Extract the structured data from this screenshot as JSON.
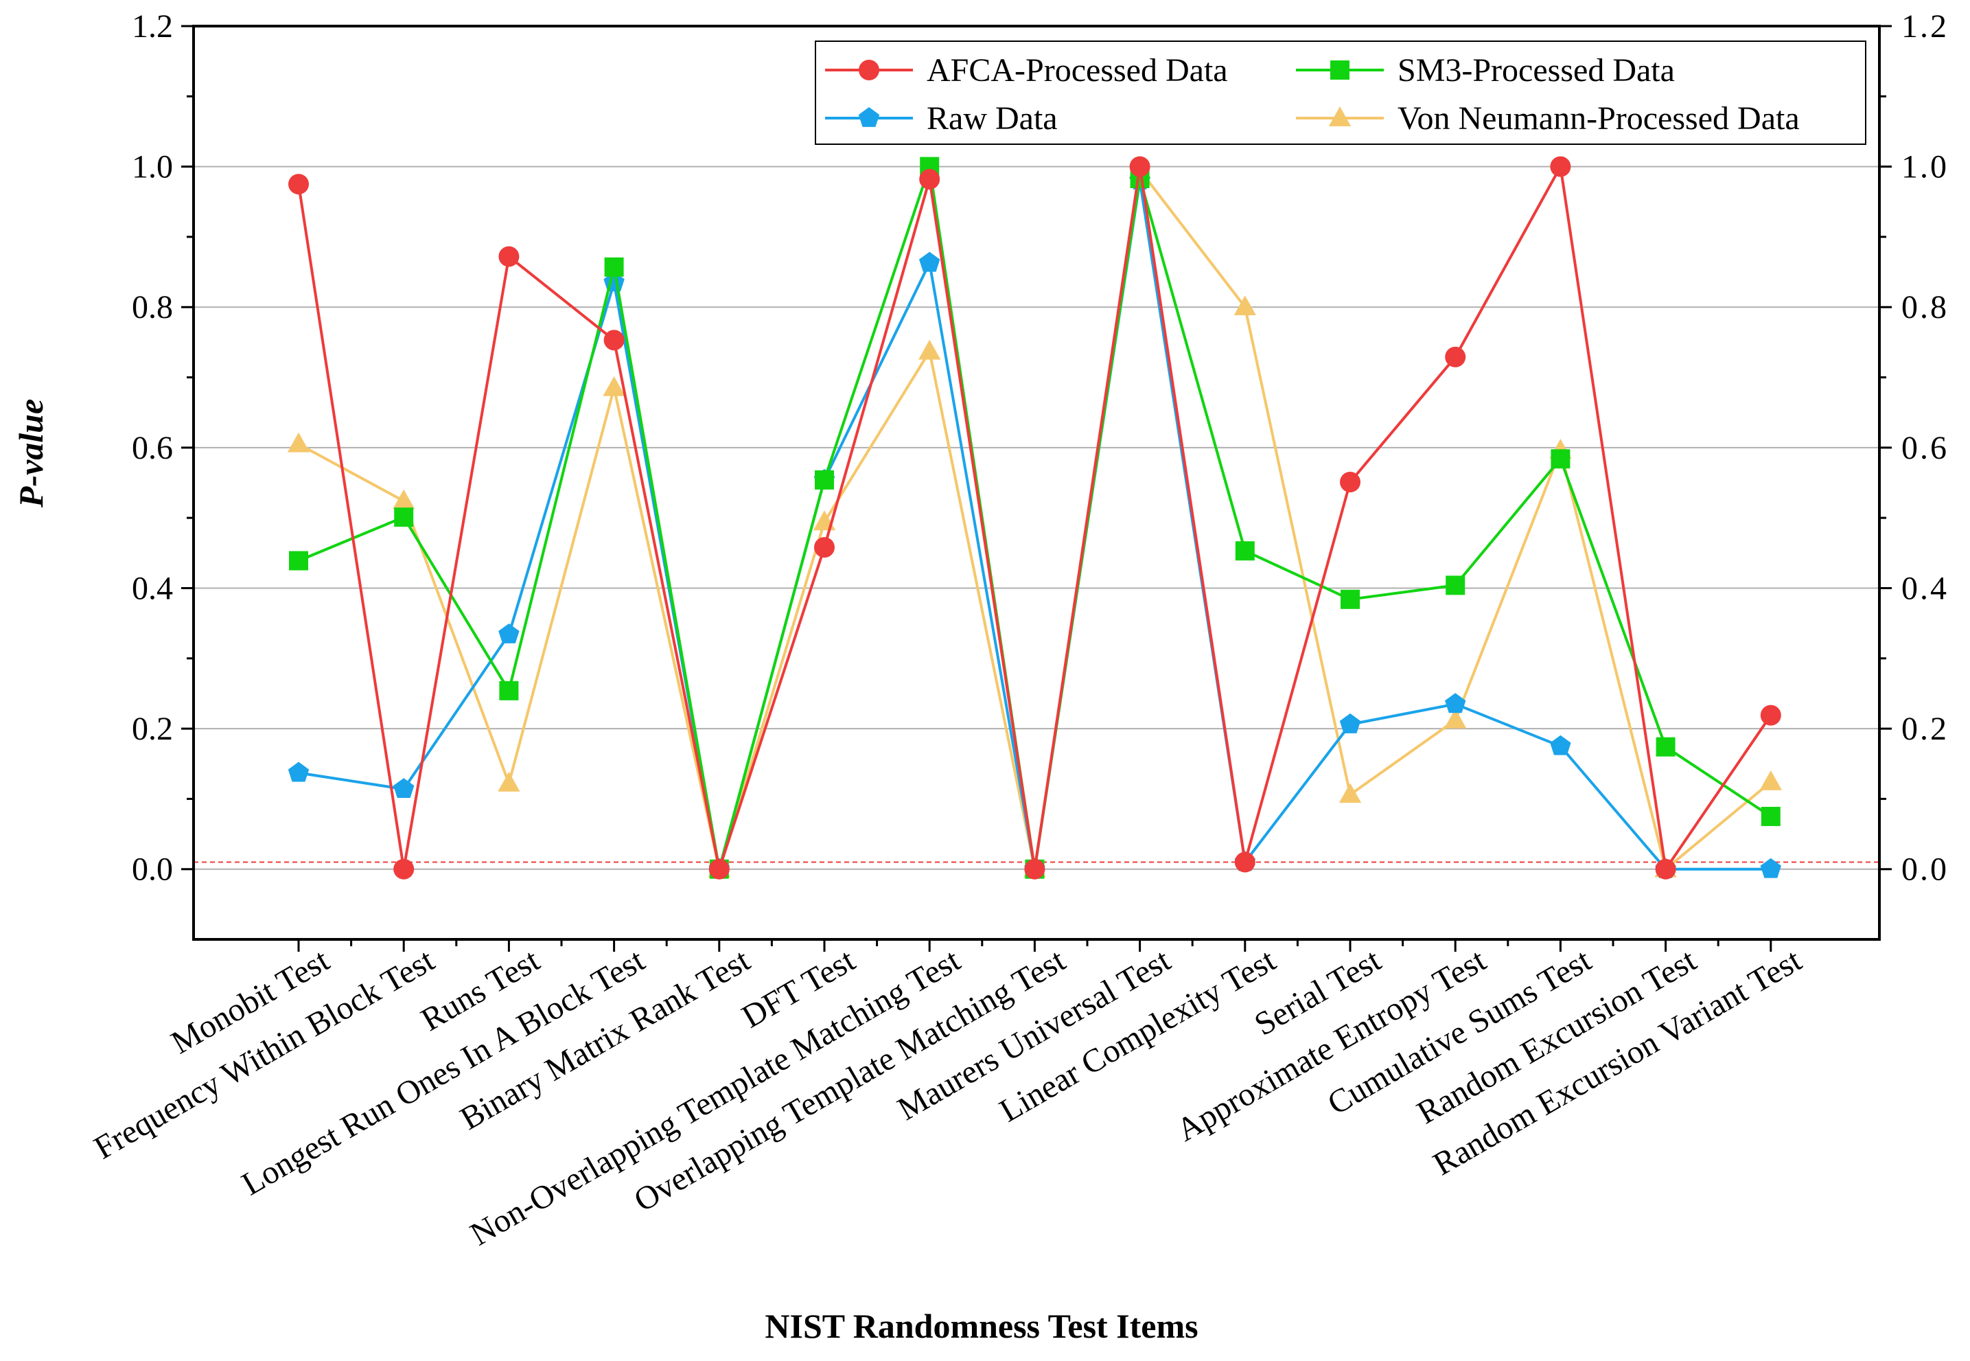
{
  "chart_data": {
    "type": "line",
    "title": "",
    "xlabel": "NIST Randomness Test Items",
    "ylabel": "P-value",
    "ylim": [
      -0.1,
      1.2
    ],
    "yticks": [
      "0.0",
      "0.2",
      "0.4",
      "0.6",
      "0.8",
      "1.0",
      "1.2"
    ],
    "ytick_values": [
      0.0,
      0.2,
      0.4,
      0.6,
      0.8,
      1.0,
      1.2
    ],
    "y2ticks": [
      "0.0",
      "0.2",
      "0.4",
      "0.6",
      "0.8",
      "1.0",
      "1.2"
    ],
    "grid": true,
    "legend_position": "top-right",
    "threshold": 0.01,
    "categories": [
      "Monobit Test",
      "Frequency Within Block Test",
      "Runs Test",
      "Longest Run Ones In A Block Test",
      "Binary Matrix Rank Test",
      "DFT Test",
      "Non-Overlapping Template Matching Test",
      "Overlapping Template Matching Test",
      "Maurers Universal Test",
      "Linear Complexity Test",
      "Serial Test",
      "Approximate Entropy Test",
      "Cumulative Sums Test",
      "Random Excursion Test",
      "Random Excursion Variant Test"
    ],
    "series": [
      {
        "name": "AFCA-Processed Data",
        "color": "#ee3b3b",
        "marker": "circle",
        "values": [
          0.975,
          0.0,
          0.872,
          0.753,
          0.0,
          0.458,
          0.982,
          0.0,
          1.0,
          0.01,
          0.551,
          0.729,
          1.0,
          0.0,
          0.219
        ]
      },
      {
        "name": "SM3-Processed Data",
        "color": "#11d411",
        "marker": "square",
        "values": [
          0.439,
          0.501,
          0.254,
          0.857,
          0.0,
          0.554,
          1.0,
          0.0,
          0.983,
          0.453,
          0.384,
          0.404,
          0.584,
          0.174,
          0.075
        ]
      },
      {
        "name": "Raw Data",
        "color": "#1aa3ea",
        "marker": "pentagon",
        "values": [
          0.137,
          0.114,
          0.334,
          0.835,
          0.0,
          0.554,
          0.863,
          0.0,
          0.98,
          0.01,
          0.206,
          0.235,
          0.175,
          0.0,
          0.0
        ]
      },
      {
        "name": "Von Neumann-Processed Data",
        "color": "#f5c76b",
        "marker": "triangle",
        "values": [
          0.605,
          0.524,
          0.122,
          0.685,
          0.0,
          0.494,
          0.737,
          0.0,
          0.995,
          0.8,
          0.106,
          0.212,
          0.596,
          0.0,
          0.124
        ]
      }
    ]
  }
}
